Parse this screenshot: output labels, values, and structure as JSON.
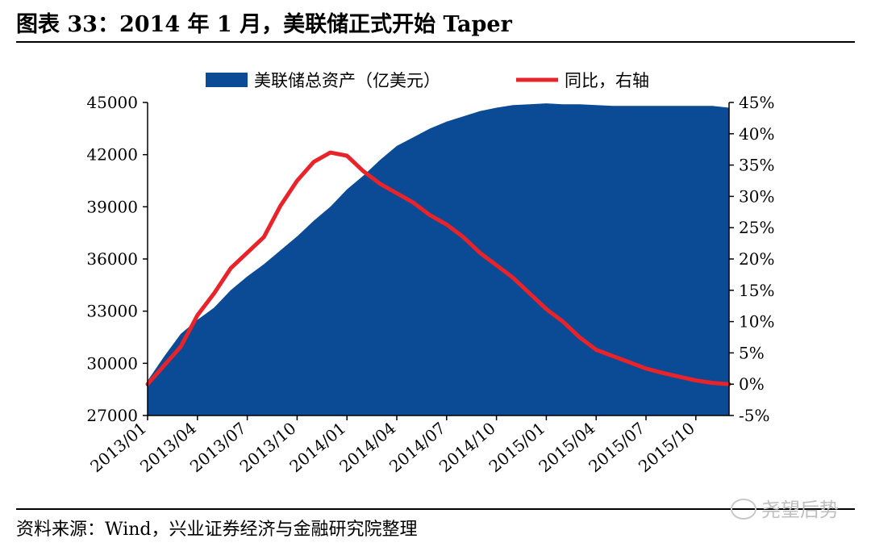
{
  "header": {
    "title": "图表 33：2014 年 1 月，美联储正式开始 Taper"
  },
  "footer": {
    "source": "资料来源：Wind，兴业证券经济与金融研究院整理",
    "watermark": "尧望后势"
  },
  "colors": {
    "area": "#0b4a94",
    "line": "#e8232a",
    "axis": "#000000"
  },
  "chart_data": {
    "type": "area",
    "title": "",
    "legend": {
      "placement": "top",
      "entries": [
        "美联储总资产（亿美元）",
        "同比，右轴"
      ]
    },
    "grid": false,
    "x_ticks": [
      "2013/01",
      "2013/04",
      "2013/07",
      "2013/10",
      "2014/01",
      "2014/04",
      "2014/07",
      "2014/10",
      "2015/01",
      "2015/04",
      "2015/07",
      "2015/10"
    ],
    "y_left": {
      "ticks": [
        "27000",
        "30000",
        "33000",
        "36000",
        "39000",
        "42000",
        "45000"
      ],
      "range": [
        27000,
        45000
      ]
    },
    "y_right": {
      "ticks": [
        "-5%",
        "0%",
        "5%",
        "10%",
        "15%",
        "20%",
        "25%",
        "30%",
        "35%",
        "40%",
        "45%"
      ],
      "range": [
        -5,
        45
      ],
      "unit": "%"
    },
    "months": [
      "2013/01",
      "2013/02",
      "2013/03",
      "2013/04",
      "2013/05",
      "2013/06",
      "2013/07",
      "2013/08",
      "2013/09",
      "2013/10",
      "2013/11",
      "2013/12",
      "2014/01",
      "2014/02",
      "2014/03",
      "2014/04",
      "2014/05",
      "2014/06",
      "2014/07",
      "2014/08",
      "2014/09",
      "2014/10",
      "2014/11",
      "2014/12",
      "2015/01",
      "2015/02",
      "2015/03",
      "2015/04",
      "2015/05",
      "2015/06",
      "2015/07",
      "2015/08",
      "2015/09",
      "2015/10",
      "2015/11",
      "2015/12"
    ],
    "series": [
      {
        "name": "美联储总资产（亿美元）",
        "type": "area",
        "axis": "left",
        "values": [
          29000,
          30400,
          31700,
          32500,
          33200,
          34200,
          35000,
          35700,
          36500,
          37300,
          38200,
          39000,
          40000,
          40800,
          41700,
          42500,
          43000,
          43500,
          43900,
          44200,
          44500,
          44700,
          44850,
          44900,
          44950,
          44900,
          44900,
          44850,
          44800,
          44800,
          44800,
          44800,
          44800,
          44800,
          44800,
          44700
        ]
      },
      {
        "name": "同比，右轴",
        "type": "line",
        "axis": "right",
        "values": [
          0,
          3,
          6,
          11,
          14.5,
          18.5,
          21,
          23.5,
          28.5,
          32.5,
          35.5,
          37,
          36.5,
          34,
          32,
          30.5,
          29,
          27,
          25.5,
          23.5,
          21,
          19,
          17,
          14.5,
          12,
          10,
          7.5,
          5.5,
          4.5,
          3.5,
          2.5,
          1.8,
          1.2,
          0.6,
          0.2,
          0
        ]
      }
    ]
  }
}
